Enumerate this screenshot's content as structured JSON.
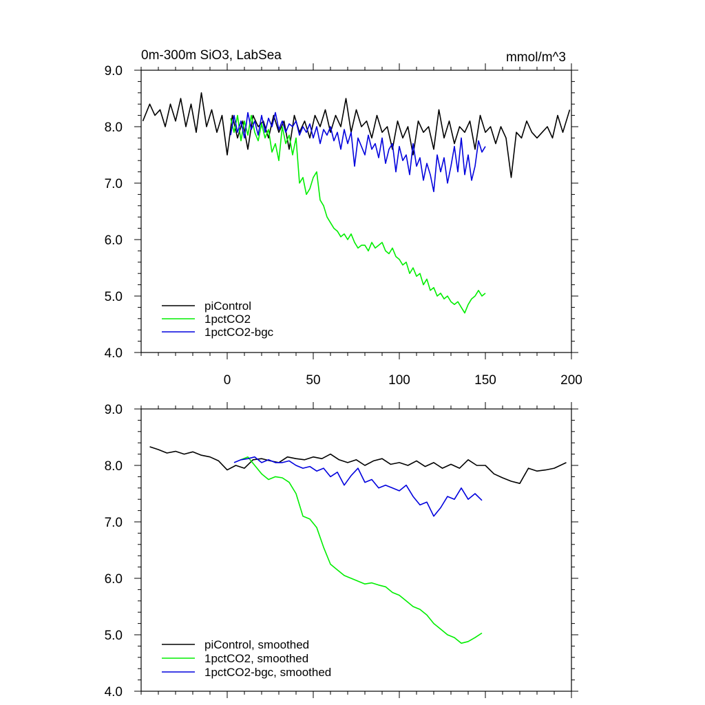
{
  "chart_data": [
    {
      "type": "line",
      "title_left": "0m-300m SiO3, LabSea",
      "title_right": "mmol/m^3",
      "xlim": [
        -50,
        200
      ],
      "ylim": [
        4.0,
        9.0
      ],
      "xticks": [
        0,
        50,
        100,
        150,
        200
      ],
      "xtick_labels": [
        "0",
        "50",
        "100",
        "150",
        "200"
      ],
      "yticks": [
        4,
        5,
        6,
        7,
        8,
        9
      ],
      "ytick_labels": [
        "4.0",
        "5.0",
        "6.0",
        "7.0",
        "8.0",
        "9.0"
      ],
      "legend_position": "bottom-left",
      "series": [
        {
          "name": "piControl",
          "color": "#000000",
          "x": [
            -49,
            -45,
            -42,
            -39,
            -36,
            -33,
            -30,
            -27,
            -24,
            -21,
            -18,
            -15,
            -12,
            -9,
            -6,
            -3,
            0,
            3,
            6,
            9,
            12,
            15,
            18,
            21,
            24,
            27,
            30,
            33,
            36,
            39,
            42,
            45,
            48,
            51,
            54,
            57,
            60,
            63,
            66,
            69,
            72,
            75,
            78,
            81,
            84,
            87,
            90,
            93,
            96,
            99,
            102,
            105,
            108,
            111,
            114,
            117,
            120,
            123,
            126,
            129,
            132,
            135,
            138,
            141,
            144,
            147,
            150,
            153,
            156,
            159,
            162,
            165,
            168,
            171,
            174,
            177,
            180,
            183,
            186,
            189,
            192,
            195,
            199
          ],
          "values": [
            8.1,
            8.4,
            8.2,
            8.3,
            8.0,
            8.4,
            8.1,
            8.5,
            8.0,
            8.4,
            7.9,
            8.6,
            8.0,
            8.3,
            7.9,
            8.2,
            7.5,
            8.2,
            7.8,
            8.1,
            7.6,
            8.2,
            8.0,
            8.1,
            7.8,
            8.2,
            7.9,
            8.1,
            7.6,
            8.2,
            7.9,
            8.1,
            7.8,
            8.2,
            8.0,
            8.3,
            7.9,
            8.2,
            8.0,
            8.5,
            7.9,
            8.3,
            8.0,
            8.1,
            7.8,
            8.2,
            7.9,
            8.0,
            7.6,
            8.1,
            7.8,
            8.0,
            7.5,
            8.1,
            7.9,
            8.0,
            7.6,
            8.3,
            7.8,
            8.1,
            7.7,
            8.0,
            7.9,
            8.1,
            7.6,
            8.2,
            7.9,
            8.0,
            7.7,
            8.0,
            7.8,
            7.1,
            7.9,
            7.8,
            8.1,
            7.9,
            7.8,
            7.9,
            8.0,
            7.8,
            8.2,
            7.9,
            8.3
          ]
        },
        {
          "name": "1pctCO2",
          "color": "#00ee00",
          "x": [
            2,
            4,
            6,
            8,
            10,
            12,
            14,
            16,
            18,
            20,
            22,
            24,
            26,
            28,
            30,
            32,
            34,
            36,
            38,
            40,
            42,
            44,
            46,
            48,
            50,
            52,
            54,
            56,
            58,
            60,
            62,
            64,
            66,
            68,
            70,
            72,
            74,
            76,
            78,
            80,
            82,
            84,
            86,
            88,
            90,
            92,
            94,
            96,
            98,
            100,
            102,
            104,
            106,
            108,
            110,
            112,
            114,
            116,
            118,
            120,
            122,
            124,
            126,
            128,
            130,
            132,
            134,
            136,
            138,
            140,
            142,
            144,
            146,
            148,
            150
          ],
          "values": [
            8.15,
            7.9,
            8.2,
            7.75,
            8.1,
            7.85,
            8.2,
            7.9,
            7.75,
            8.05,
            7.8,
            7.95,
            7.55,
            7.7,
            7.4,
            8.0,
            7.7,
            7.85,
            7.5,
            7.8,
            7.0,
            7.1,
            6.8,
            6.9,
            7.1,
            7.2,
            6.7,
            6.6,
            6.4,
            6.3,
            6.2,
            6.15,
            6.05,
            6.1,
            6.0,
            6.1,
            5.95,
            5.85,
            5.9,
            5.9,
            5.8,
            5.95,
            5.85,
            5.9,
            5.95,
            5.8,
            5.75,
            5.85,
            5.7,
            5.65,
            5.55,
            5.6,
            5.4,
            5.5,
            5.35,
            5.4,
            5.2,
            5.3,
            5.1,
            5.15,
            5.0,
            5.05,
            4.95,
            5.0,
            4.9,
            4.85,
            4.9,
            4.8,
            4.7,
            4.85,
            4.95,
            5.0,
            5.1,
            5.0,
            5.05
          ]
        },
        {
          "name": "1pctCO2-bgc",
          "color": "#0000dd",
          "x": [
            2,
            4,
            6,
            8,
            10,
            12,
            14,
            16,
            18,
            20,
            22,
            24,
            26,
            28,
            30,
            32,
            34,
            36,
            38,
            40,
            42,
            44,
            46,
            48,
            50,
            52,
            54,
            56,
            58,
            60,
            62,
            64,
            66,
            68,
            70,
            72,
            74,
            76,
            78,
            80,
            82,
            84,
            86,
            88,
            90,
            92,
            94,
            96,
            98,
            100,
            102,
            104,
            106,
            108,
            110,
            112,
            114,
            116,
            118,
            120,
            122,
            124,
            126,
            128,
            130,
            132,
            134,
            136,
            138,
            140,
            142,
            144,
            146,
            148,
            150
          ],
          "values": [
            7.85,
            8.2,
            7.9,
            8.1,
            7.8,
            8.25,
            7.95,
            8.1,
            7.85,
            8.2,
            7.9,
            8.15,
            8.0,
            8.25,
            7.95,
            8.1,
            7.9,
            8.05,
            8.0,
            8.1,
            7.85,
            8.0,
            7.9,
            8.05,
            7.8,
            8.0,
            7.7,
            7.95,
            7.85,
            8.0,
            7.75,
            7.9,
            7.6,
            7.95,
            7.7,
            7.9,
            7.3,
            7.8,
            7.65,
            7.5,
            7.85,
            7.6,
            7.7,
            7.45,
            7.8,
            7.35,
            7.6,
            7.7,
            7.2,
            7.65,
            7.4,
            7.5,
            7.15,
            7.7,
            7.3,
            7.45,
            7.05,
            7.35,
            7.15,
            6.85,
            7.5,
            7.2,
            7.45,
            7.0,
            7.3,
            7.65,
            7.2,
            7.8,
            7.15,
            7.5,
            7.05,
            7.3,
            7.75,
            7.55,
            7.65
          ]
        }
      ]
    },
    {
      "type": "line",
      "xlim": [
        -50,
        200
      ],
      "ylim": [
        4.0,
        9.0
      ],
      "xticks": [
        0,
        50,
        100,
        150,
        200
      ],
      "yticks": [
        4,
        5,
        6,
        7,
        8,
        9
      ],
      "ytick_labels": [
        "4.0",
        "5.0",
        "6.0",
        "7.0",
        "8.0",
        "9.0"
      ],
      "legend_position": "bottom-left",
      "series": [
        {
          "name": "piControl, smoothed",
          "color": "#000000",
          "x": [
            -45,
            -40,
            -35,
            -30,
            -25,
            -20,
            -15,
            -10,
            -5,
            0,
            5,
            10,
            15,
            20,
            25,
            30,
            35,
            40,
            45,
            50,
            55,
            60,
            65,
            70,
            75,
            80,
            85,
            90,
            95,
            100,
            105,
            110,
            115,
            120,
            125,
            130,
            135,
            140,
            145,
            150,
            155,
            160,
            165,
            170,
            175,
            180,
            185,
            190,
            197
          ],
          "values": [
            8.33,
            8.28,
            8.22,
            8.25,
            8.2,
            8.24,
            8.18,
            8.15,
            8.08,
            7.92,
            8.0,
            7.95,
            8.1,
            8.12,
            8.08,
            8.05,
            8.15,
            8.12,
            8.1,
            8.15,
            8.12,
            8.2,
            8.1,
            8.05,
            8.1,
            8.0,
            8.08,
            8.12,
            8.02,
            8.05,
            8.0,
            8.08,
            7.98,
            8.05,
            7.95,
            8.02,
            7.95,
            8.1,
            8.0,
            8.0,
            7.85,
            7.78,
            7.72,
            7.68,
            7.95,
            7.9,
            7.92,
            7.95,
            8.05
          ]
        },
        {
          "name": "1pctCO2, smoothed",
          "color": "#00ee00",
          "x": [
            8,
            12,
            16,
            20,
            24,
            28,
            32,
            36,
            40,
            44,
            48,
            52,
            56,
            60,
            64,
            68,
            72,
            76,
            80,
            84,
            88,
            92,
            96,
            100,
            104,
            108,
            112,
            116,
            120,
            124,
            128,
            132,
            136,
            140,
            144,
            148
          ],
          "values": [
            8.1,
            8.15,
            8.0,
            7.85,
            7.75,
            7.8,
            7.78,
            7.7,
            7.5,
            7.1,
            7.05,
            6.9,
            6.55,
            6.25,
            6.15,
            6.05,
            6.0,
            5.95,
            5.9,
            5.92,
            5.88,
            5.85,
            5.75,
            5.7,
            5.6,
            5.5,
            5.45,
            5.35,
            5.2,
            5.1,
            5.0,
            4.95,
            4.85,
            4.88,
            4.95,
            5.03
          ]
        },
        {
          "name": "1pctCO2-bgc, smoothed",
          "color": "#0000dd",
          "x": [
            4,
            8,
            12,
            16,
            20,
            24,
            28,
            32,
            36,
            40,
            44,
            48,
            52,
            56,
            60,
            64,
            68,
            72,
            76,
            80,
            84,
            88,
            92,
            96,
            100,
            104,
            108,
            112,
            116,
            120,
            124,
            128,
            132,
            136,
            140,
            144,
            148
          ],
          "values": [
            8.05,
            8.1,
            8.12,
            8.15,
            8.05,
            8.1,
            8.05,
            8.05,
            8.08,
            8.0,
            7.95,
            7.98,
            7.9,
            7.95,
            7.8,
            7.88,
            7.65,
            7.82,
            7.95,
            7.7,
            7.75,
            7.6,
            7.65,
            7.6,
            7.55,
            7.65,
            7.45,
            7.3,
            7.35,
            7.1,
            7.25,
            7.45,
            7.4,
            7.6,
            7.4,
            7.5,
            7.38
          ]
        }
      ]
    }
  ]
}
